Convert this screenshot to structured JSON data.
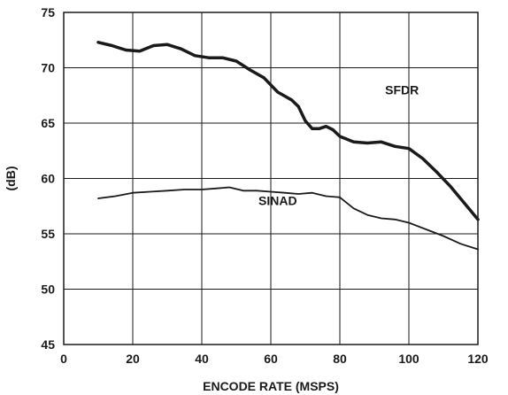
{
  "chart_data": {
    "type": "line",
    "xlabel": "ENCODE RATE (MSPS)",
    "ylabel": "(dB)",
    "xlim": [
      0,
      120
    ],
    "ylim": [
      45,
      75
    ],
    "x_ticks": [
      "0",
      "20",
      "40",
      "60",
      "80",
      "100",
      "120"
    ],
    "y_ticks": [
      "45",
      "50",
      "55",
      "60",
      "65",
      "70",
      "75"
    ],
    "grid": true,
    "series": [
      {
        "name": "SFDR",
        "points": [
          [
            10,
            72.3
          ],
          [
            14,
            72.0
          ],
          [
            18,
            71.6
          ],
          [
            22,
            71.5
          ],
          [
            26,
            72.0
          ],
          [
            30,
            72.1
          ],
          [
            34,
            71.7
          ],
          [
            38,
            71.1
          ],
          [
            42,
            70.9
          ],
          [
            46,
            70.9
          ],
          [
            50,
            70.6
          ],
          [
            54,
            69.8
          ],
          [
            58,
            69.1
          ],
          [
            62,
            67.8
          ],
          [
            66,
            67.1
          ],
          [
            68,
            66.5
          ],
          [
            70,
            65.2
          ],
          [
            72,
            64.5
          ],
          [
            74,
            64.5
          ],
          [
            76,
            64.7
          ],
          [
            78,
            64.4
          ],
          [
            80,
            63.8
          ],
          [
            84,
            63.3
          ],
          [
            88,
            63.2
          ],
          [
            92,
            63.3
          ],
          [
            96,
            62.9
          ],
          [
            100,
            62.7
          ],
          [
            104,
            61.8
          ],
          [
            108,
            60.6
          ],
          [
            112,
            59.3
          ],
          [
            116,
            57.8
          ],
          [
            120,
            56.3
          ]
        ]
      },
      {
        "name": "SINAD",
        "points": [
          [
            10,
            58.2
          ],
          [
            15,
            58.4
          ],
          [
            20,
            58.7
          ],
          [
            25,
            58.8
          ],
          [
            30,
            58.9
          ],
          [
            35,
            59.0
          ],
          [
            40,
            59.0
          ],
          [
            44,
            59.1
          ],
          [
            48,
            59.2
          ],
          [
            52,
            58.9
          ],
          [
            56,
            58.9
          ],
          [
            60,
            58.8
          ],
          [
            64,
            58.7
          ],
          [
            68,
            58.6
          ],
          [
            72,
            58.7
          ],
          [
            76,
            58.4
          ],
          [
            80,
            58.3
          ],
          [
            84,
            57.3
          ],
          [
            88,
            56.7
          ],
          [
            92,
            56.4
          ],
          [
            96,
            56.3
          ],
          [
            100,
            56.0
          ],
          [
            105,
            55.4
          ],
          [
            110,
            54.8
          ],
          [
            115,
            54.1
          ],
          [
            120,
            53.6
          ]
        ]
      }
    ]
  }
}
